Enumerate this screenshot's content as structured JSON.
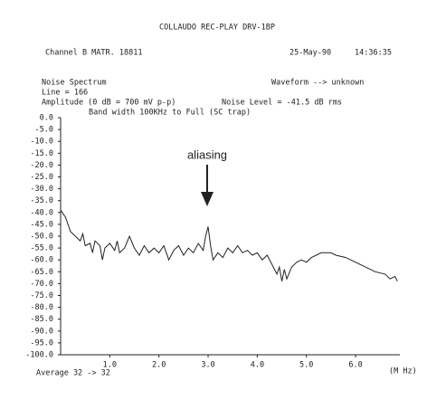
{
  "chart_data": {
    "type": "line",
    "title": "COLLAUDO REC-PLAY DRV-1BP",
    "channel": "Channel B  MATR. 18811",
    "date": "25-May-90",
    "time": "14:36:35",
    "subtitle": "Noise Spectrum",
    "waveform": "Waveform --> unknown",
    "line_info": "Line = 166",
    "amplitude": "Amplitude (0 dB = 700 mV p-p)",
    "noise_level": "Noise Level =  -41.5 dB rms",
    "bandwidth": "Band width 100KHz to  Full  (SC trap)",
    "annotation": "aliasing",
    "average": "Average  32 -> 32",
    "xlabel": "(M Hz)",
    "xlim": [
      0,
      6.9
    ],
    "ylim": [
      -100,
      0
    ],
    "xticks": [
      {
        "value": 1,
        "label": "1.0"
      },
      {
        "value": 2,
        "label": "2.0"
      },
      {
        "value": 3,
        "label": "3.0"
      },
      {
        "value": 4,
        "label": "4.0"
      },
      {
        "value": 5,
        "label": "5.0"
      },
      {
        "value": 6,
        "label": "6.0"
      }
    ],
    "yticks": [
      {
        "value": 0,
        "label": "0.0"
      },
      {
        "value": -5,
        "label": "-5.0"
      },
      {
        "value": -10,
        "label": "-10.0"
      },
      {
        "value": -15,
        "label": "-15.0"
      },
      {
        "value": -20,
        "label": "-20.0"
      },
      {
        "value": -25,
        "label": "-25.0"
      },
      {
        "value": -30,
        "label": "-30.0"
      },
      {
        "value": -35,
        "label": "-35.0"
      },
      {
        "value": -40,
        "label": "-40.0"
      },
      {
        "value": -45,
        "label": "-45.0"
      },
      {
        "value": -50,
        "label": "-50.0"
      },
      {
        "value": -55,
        "label": "-55.0"
      },
      {
        "value": -60,
        "label": "-60.0"
      },
      {
        "value": -65,
        "label": "-65.0"
      },
      {
        "value": -70,
        "label": "-70.0"
      },
      {
        "value": -75,
        "label": "-75.0"
      },
      {
        "value": -80,
        "label": "-80.0"
      },
      {
        "value": -85,
        "label": "-85.0"
      },
      {
        "value": -90,
        "label": "-90.0"
      },
      {
        "value": -95,
        "label": "-95.0"
      },
      {
        "value": -100,
        "label": "-100.0"
      }
    ],
    "color": "#222222",
    "x": [
      0.0,
      0.1,
      0.2,
      0.3,
      0.4,
      0.45,
      0.5,
      0.6,
      0.65,
      0.7,
      0.8,
      0.85,
      0.9,
      1.0,
      1.1,
      1.15,
      1.2,
      1.3,
      1.4,
      1.5,
      1.6,
      1.7,
      1.8,
      1.9,
      2.0,
      2.1,
      2.2,
      2.3,
      2.4,
      2.5,
      2.6,
      2.7,
      2.8,
      2.9,
      2.95,
      3.0,
      3.05,
      3.1,
      3.2,
      3.3,
      3.4,
      3.5,
      3.6,
      3.7,
      3.8,
      3.9,
      4.0,
      4.1,
      4.2,
      4.3,
      4.4,
      4.45,
      4.5,
      4.55,
      4.6,
      4.7,
      4.8,
      4.9,
      5.0,
      5.1,
      5.2,
      5.3,
      5.5,
      5.6,
      5.8,
      6.0,
      6.2,
      6.4,
      6.6,
      6.7,
      6.8,
      6.85
    ],
    "values": [
      -39,
      -42,
      -48,
      -50,
      -52,
      -49,
      -54,
      -53,
      -57,
      -52,
      -54,
      -60,
      -55,
      -53,
      -56,
      -52,
      -57,
      -55,
      -50,
      -55,
      -58,
      -54,
      -57,
      -55,
      -57,
      -54,
      -60,
      -56,
      -54,
      -58,
      -55,
      -57,
      -53,
      -56,
      -50,
      -46,
      -54,
      -60,
      -57,
      -59,
      -55,
      -57,
      -54,
      -57,
      -56,
      -58,
      -57,
      -60,
      -58,
      -62,
      -66,
      -63,
      -69,
      -64,
      -68,
      -63,
      -61,
      -60,
      -61,
      -59,
      -58,
      -57,
      -57,
      -58,
      -59,
      -61,
      -63,
      -65,
      -66,
      -68,
      -67,
      -69
    ]
  }
}
